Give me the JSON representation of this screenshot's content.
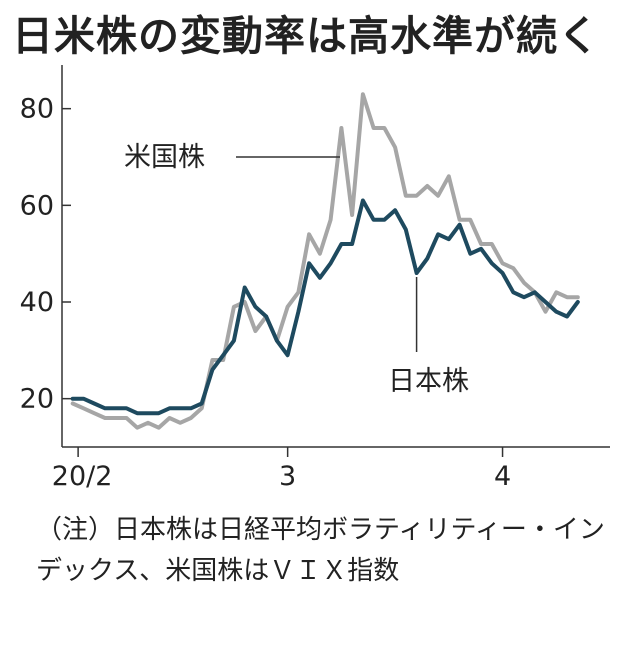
{
  "chart_data": {
    "type": "line",
    "title": "日米株の変動率は高水準が続く",
    "xlabel": "",
    "ylabel": "",
    "ylim": [
      10,
      88
    ],
    "yticks": [
      20,
      40,
      60,
      80
    ],
    "xticks": [
      {
        "label": "20/2",
        "x": 0.5
      },
      {
        "label": "3",
        "x": 20
      },
      {
        "label": "4",
        "x": 40
      }
    ],
    "grid": false,
    "annotations": [
      {
        "text": "米国株",
        "series": 0
      },
      {
        "text": "日本株",
        "series": 1
      }
    ],
    "note": "（注）日本株は日経平均ボラティリティー・インデックス、米国株はＶＩＸ指数",
    "series": [
      {
        "name": "米国株",
        "color": "#a6a6a6",
        "x": [
          0,
          1,
          2,
          3,
          4,
          5,
          6,
          7,
          8,
          9,
          10,
          11,
          12,
          13,
          14,
          15,
          16,
          17,
          18,
          19,
          20,
          21,
          22,
          23,
          24,
          25,
          26,
          27,
          28,
          29,
          30,
          31,
          32,
          33,
          34,
          35,
          36,
          37,
          38,
          39,
          40,
          41,
          42,
          43,
          44,
          45,
          46,
          47
        ],
        "values": [
          19,
          18,
          17,
          16,
          16,
          16,
          14,
          15,
          14,
          16,
          15,
          16,
          18,
          28,
          28,
          39,
          40,
          34,
          37,
          32,
          39,
          42,
          54,
          50,
          57,
          76,
          58,
          83,
          76,
          76,
          72,
          62,
          62,
          64,
          62,
          66,
          57,
          57,
          52,
          52,
          48,
          47,
          44,
          42,
          38,
          42,
          41,
          41
        ]
      },
      {
        "name": "日本株",
        "color": "#1e4a5f",
        "x": [
          0,
          1,
          2,
          3,
          4,
          5,
          6,
          7,
          8,
          9,
          10,
          11,
          12,
          13,
          14,
          15,
          16,
          17,
          18,
          19,
          20,
          21,
          22,
          23,
          24,
          25,
          26,
          27,
          28,
          29,
          30,
          31,
          32,
          33,
          34,
          35,
          36,
          37,
          38,
          39,
          40,
          41,
          42,
          43,
          44,
          45,
          46,
          47
        ],
        "values": [
          20,
          20,
          19,
          18,
          18,
          18,
          17,
          17,
          17,
          18,
          18,
          18,
          19,
          26,
          29,
          32,
          43,
          39,
          37,
          32,
          29,
          38,
          48,
          45,
          48,
          52,
          52,
          61,
          57,
          57,
          59,
          55,
          46,
          49,
          54,
          53,
          56,
          50,
          51,
          48,
          46,
          42,
          41,
          42,
          40,
          38,
          37,
          40
        ]
      }
    ]
  }
}
